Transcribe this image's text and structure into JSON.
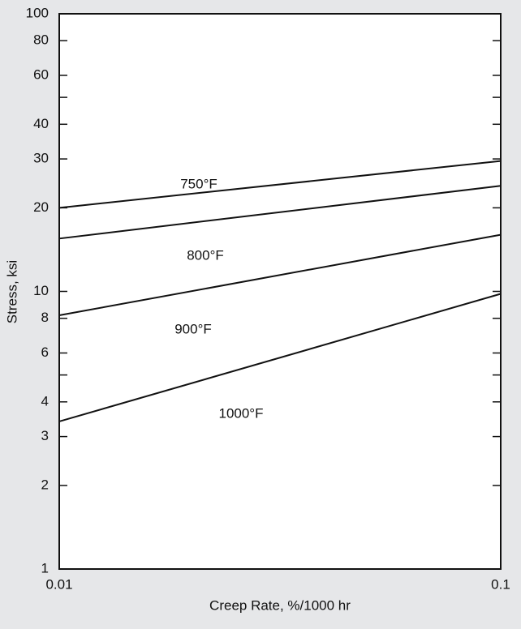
{
  "chart_data": {
    "type": "line",
    "x_label": "Creep Rate, %/1000 hr",
    "y_label": "Stress, ksi",
    "x": [
      0.01,
      0.1
    ],
    "series": [
      {
        "name": "750°F",
        "color": "#111111",
        "values": [
          20,
          29.5
        ]
      },
      {
        "name": "800°F",
        "color": "#111111",
        "values": [
          15.5,
          24
        ]
      },
      {
        "name": "900°F",
        "color": "#111111",
        "values": [
          8.2,
          16
        ]
      },
      {
        "name": "1000°F",
        "color": "#111111",
        "values": [
          3.4,
          9.8
        ]
      }
    ],
    "xlim": [
      0.01,
      0.1
    ],
    "xticks": [
      0.01,
      0.1
    ],
    "ylim": [
      1,
      100
    ],
    "yticks": [
      1,
      2,
      3,
      4,
      6,
      8,
      10,
      20,
      30,
      40,
      60,
      80,
      100
    ],
    "minor_yticks": [
      5,
      50
    ],
    "log_x": true,
    "log_y": true,
    "grid": false
  }
}
